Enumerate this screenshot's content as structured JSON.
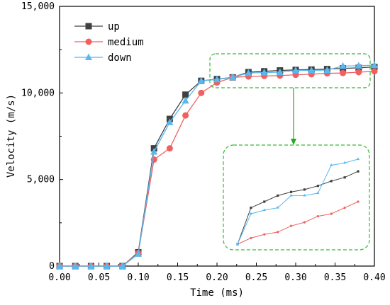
{
  "chart_data": {
    "type": "line",
    "xlabel": "Time (ms)",
    "ylabel": "Velocity (m/s)",
    "xlim": [
      0,
      0.4
    ],
    "ylim": [
      0,
      15000
    ],
    "x_ticks": [
      "0.00",
      "0.05",
      "0.10",
      "0.15",
      "0.20",
      "0.25",
      "0.30",
      "0.35",
      "0.40"
    ],
    "y_ticks": [
      "0",
      "5,000",
      "10,000",
      "15,000"
    ],
    "grid": false,
    "legend_position": "top-left",
    "x": [
      0,
      0.02,
      0.04,
      0.06,
      0.08,
      0.1,
      0.12,
      0.14,
      0.16,
      0.18,
      0.2,
      0.22,
      0.24,
      0.26,
      0.28,
      0.3,
      0.32,
      0.34,
      0.36,
      0.38,
      0.4
    ],
    "series": [
      {
        "name": "up",
        "color": "#404040",
        "marker": "square",
        "values": [
          0,
          0,
          0,
          0,
          0,
          800,
          6800,
          8500,
          9900,
          10700,
          10800,
          10900,
          11200,
          11250,
          11300,
          11330,
          11350,
          11380,
          11420,
          11450,
          11500
        ]
      },
      {
        "name": "medium",
        "color": "#f06060",
        "marker": "circle",
        "values": [
          0,
          0,
          0,
          0,
          0,
          750,
          6150,
          6800,
          8700,
          10000,
          10600,
          10900,
          10950,
          10980,
          11000,
          11050,
          11080,
          11130,
          11150,
          11200,
          11250
        ]
      },
      {
        "name": "down",
        "color": "#58b8f0",
        "marker": "triangle",
        "values": [
          0,
          0,
          0,
          0,
          0,
          700,
          6600,
          8300,
          9550,
          10700,
          10780,
          10900,
          11150,
          11180,
          11200,
          11300,
          11300,
          11320,
          11550,
          11570,
          11600
        ]
      }
    ],
    "inset": {
      "description_source": "zoomed view of the region 0.22–0.40 ms (no axes printed)",
      "x_range": [
        0.22,
        0.4
      ]
    }
  }
}
